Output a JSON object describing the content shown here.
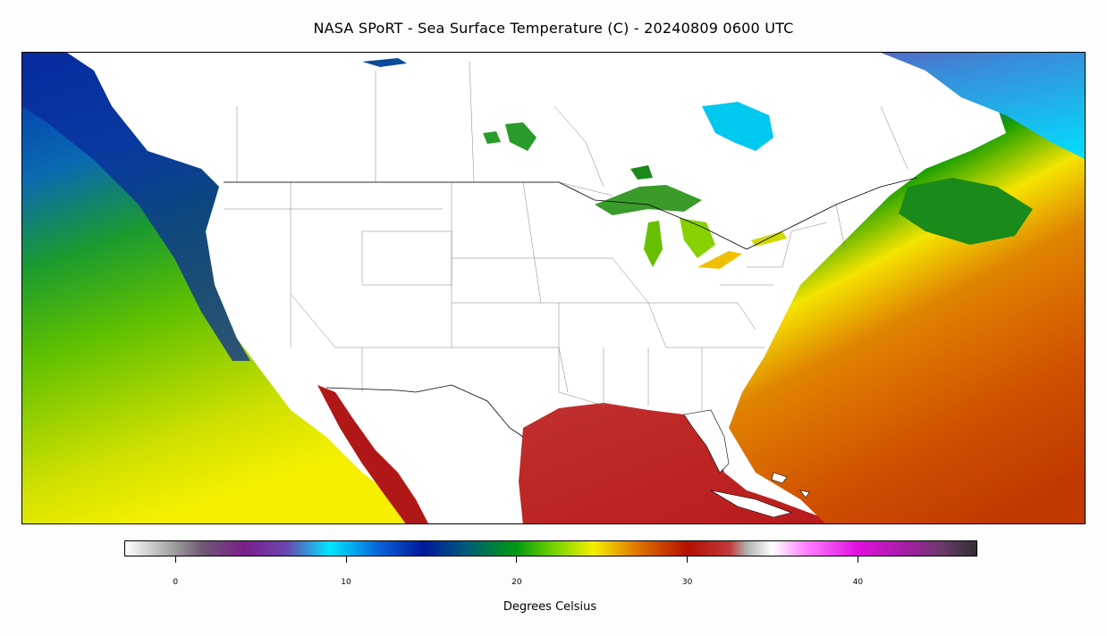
{
  "title": "NASA SPoRT - Sea Surface Temperature (C) - 20240809 0600 UTC",
  "colorbar": {
    "label": "Degrees Celsius",
    "range": [
      -3,
      47
    ],
    "ticks": [
      {
        "value": 0,
        "label": "0"
      },
      {
        "value": 10,
        "label": "10"
      },
      {
        "value": 20,
        "label": "20"
      },
      {
        "value": 30,
        "label": "30"
      },
      {
        "value": 40,
        "label": "40"
      }
    ],
    "color_stops": [
      {
        "value": -3,
        "color": "#ffffff"
      },
      {
        "value": 0,
        "color": "#9a9a9a"
      },
      {
        "value": 1.5,
        "color": "#6f5a75"
      },
      {
        "value": 4,
        "color": "#7a1f8a"
      },
      {
        "value": 6.5,
        "color": "#6a48b0"
      },
      {
        "value": 9,
        "color": "#00e5ff"
      },
      {
        "value": 12,
        "color": "#0a5fd8"
      },
      {
        "value": 14.5,
        "color": "#001a9a"
      },
      {
        "value": 17,
        "color": "#005a7a"
      },
      {
        "value": 20,
        "color": "#009a10"
      },
      {
        "value": 22,
        "color": "#6ccf00"
      },
      {
        "value": 24.5,
        "color": "#f4f000"
      },
      {
        "value": 27,
        "color": "#e07a00"
      },
      {
        "value": 30,
        "color": "#b50f00"
      },
      {
        "value": 32.5,
        "color": "#c03a3a"
      },
      {
        "value": 33.5,
        "color": "#b0b0b0"
      },
      {
        "value": 35,
        "color": "#ffffff"
      },
      {
        "value": 37,
        "color": "#ff80ff"
      },
      {
        "value": 40,
        "color": "#e010e0"
      },
      {
        "value": 43,
        "color": "#a020a0"
      },
      {
        "value": 45,
        "color": "#6a3a6a"
      },
      {
        "value": 47,
        "color": "#303030"
      }
    ]
  },
  "map": {
    "variable": "Sea Surface Temperature",
    "units": "C",
    "land_color": "#ffffff",
    "features": [
      "coastlines",
      "state-borders",
      "country-borders",
      "great-lakes"
    ],
    "regions": [
      {
        "name": "Pacific Ocean north",
        "color": "#0a2fb0"
      },
      {
        "name": "Pacific Ocean central",
        "color": "#44b400"
      },
      {
        "name": "Pacific Ocean south",
        "color": "#e8e000"
      },
      {
        "name": "Gulf of Mexico",
        "color": "#c0282a"
      },
      {
        "name": "Atlantic Ocean southeast",
        "color": "#d05000"
      },
      {
        "name": "Atlantic Ocean northeast",
        "color": "#f0d000"
      },
      {
        "name": "Gulf of St. Lawrence",
        "color": "#1a7a1a"
      },
      {
        "name": "Hudson Bay",
        "color": "#00c8ee"
      },
      {
        "name": "Labrador Sea",
        "color": "#00b8e8"
      },
      {
        "name": "Gulf of California",
        "color": "#b01818"
      },
      {
        "name": "Great Lakes",
        "color": "#66c800"
      }
    ]
  }
}
